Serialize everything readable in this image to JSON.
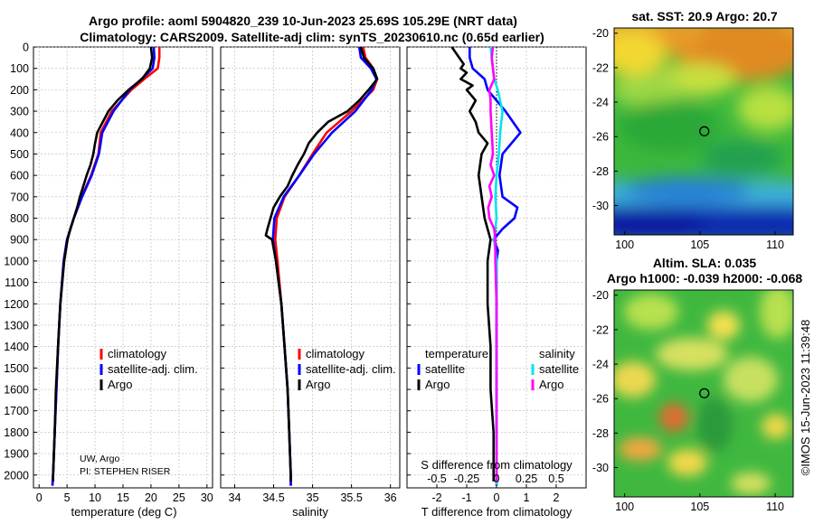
{
  "title": {
    "line1": "Argo profile: aoml 5904820_239 10-Jun-2023 25.69S 105.29E (NRT data)",
    "line2": "Climatology: CARS2009. Satellite-adj clim: synTS_20230610.nc (0.65d earlier)"
  },
  "credit": {
    "line1": "UW, Argo",
    "line2": "PI: STEPHEN RISER"
  },
  "watermark": "©IMOS 15-Jun-2023 11:39:48",
  "colors": {
    "climatology": "#ff0000",
    "satellite": "#0000ff",
    "argo": "#000000",
    "sat_salinity": "#00e5ee",
    "argo_salinity": "#ff00ff"
  },
  "chart_data": [
    {
      "type": "line",
      "name": "temperature-profile",
      "xlabel": "temperature (deg C)",
      "xlim": [
        -1,
        31
      ],
      "ylim": [
        2060,
        0
      ],
      "xticks": [
        "0",
        "5",
        "10",
        "15",
        "20",
        "25",
        "30"
      ],
      "yticks": [
        "0",
        "100",
        "200",
        "300",
        "400",
        "500",
        "600",
        "700",
        "800",
        "900",
        "1000",
        "1100",
        "1200",
        "1300",
        "1400",
        "1500",
        "1600",
        "1700",
        "1800",
        "1900",
        "2000"
      ],
      "legend": {
        "position": "lower-right",
        "entries": [
          "climatology",
          "satellite-adj. clim.",
          "Argo"
        ]
      },
      "series": [
        {
          "name": "climatology",
          "color": "#ff0000",
          "depth": [
            0,
            50,
            100,
            150,
            200,
            300,
            400,
            500,
            600,
            700,
            800,
            900,
            1000,
            1200,
            1400,
            1600,
            1800,
            2000,
            2050
          ],
          "values": [
            21.5,
            21.5,
            21.2,
            18.8,
            16.5,
            13.0,
            11.0,
            10.6,
            9.3,
            7.6,
            6.2,
            5.0,
            4.4,
            3.8,
            3.4,
            3.1,
            2.8,
            2.5,
            2.4
          ]
        },
        {
          "name": "satellite-adj. clim.",
          "color": "#0000ff",
          "depth": [
            0,
            50,
            100,
            150,
            200,
            300,
            400,
            500,
            600,
            700,
            800,
            900,
            1000,
            1200,
            1400,
            1600,
            1800,
            2000,
            2050
          ],
          "values": [
            20.5,
            20.6,
            20.3,
            18.3,
            16.2,
            13.3,
            11.3,
            10.7,
            9.4,
            7.7,
            6.2,
            5.0,
            4.4,
            3.8,
            3.4,
            3.1,
            2.8,
            2.5,
            2.4
          ]
        },
        {
          "name": "Argo",
          "color": "#000000",
          "depth": [
            0,
            50,
            100,
            150,
            200,
            250,
            300,
            350,
            400,
            450,
            500,
            550,
            600,
            650,
            700,
            750,
            800,
            850,
            900,
            1000,
            1200,
            1400,
            1600,
            1800,
            2000,
            2030
          ],
          "values": [
            20.0,
            20.2,
            19.8,
            18.4,
            16.0,
            14.0,
            12.4,
            11.4,
            10.4,
            10.0,
            9.7,
            9.2,
            8.5,
            7.9,
            7.3,
            6.8,
            6.2,
            5.6,
            5.1,
            4.5,
            3.8,
            3.4,
            3.0,
            2.8,
            2.5,
            2.5
          ]
        }
      ]
    },
    {
      "type": "line",
      "name": "salinity-profile",
      "xlabel": "salinity",
      "xlim": [
        33.82,
        36.12
      ],
      "ylim": [
        2060,
        0
      ],
      "xticks": [
        "34",
        "34.5",
        "35",
        "35.5",
        "36"
      ],
      "legend": {
        "position": "lower-right",
        "entries": [
          "climatology",
          "satellite-adj. clim.",
          "Argo"
        ]
      },
      "series": [
        {
          "name": "climatology",
          "color": "#ff0000",
          "depth": [
            0,
            50,
            100,
            150,
            200,
            300,
            400,
            500,
            600,
            700,
            800,
            900,
            1000,
            1200,
            1400,
            1600,
            1800,
            2000,
            2050
          ],
          "values": [
            35.65,
            35.68,
            35.78,
            35.83,
            35.78,
            35.5,
            35.18,
            35.0,
            34.83,
            34.64,
            34.54,
            34.52,
            34.55,
            34.6,
            34.64,
            34.68,
            34.7,
            34.72,
            34.72
          ]
        },
        {
          "name": "satellite-adj. clim.",
          "color": "#0000ff",
          "depth": [
            0,
            50,
            100,
            150,
            200,
            300,
            400,
            500,
            600,
            700,
            800,
            900,
            1000,
            1200,
            1400,
            1600,
            1800,
            2000,
            2050
          ],
          "values": [
            35.6,
            35.62,
            35.75,
            35.82,
            35.76,
            35.55,
            35.25,
            35.02,
            34.83,
            34.63,
            34.51,
            34.49,
            34.53,
            34.6,
            34.64,
            34.68,
            34.7,
            34.72,
            34.72
          ]
        },
        {
          "name": "Argo",
          "color": "#000000",
          "depth": [
            0,
            50,
            100,
            150,
            200,
            250,
            300,
            350,
            400,
            450,
            500,
            550,
            600,
            650,
            700,
            750,
            800,
            850,
            880,
            900,
            1000,
            1200,
            1400,
            1600,
            1800,
            2000,
            2030
          ],
          "values": [
            35.62,
            35.66,
            35.78,
            35.83,
            35.72,
            35.6,
            35.45,
            35.2,
            35.06,
            34.95,
            34.89,
            34.81,
            34.74,
            34.68,
            34.58,
            34.5,
            34.46,
            34.42,
            34.4,
            34.48,
            34.53,
            34.6,
            34.64,
            34.68,
            34.7,
            34.72,
            34.72
          ]
        }
      ]
    },
    {
      "type": "line",
      "name": "difference-profile",
      "xlabel": "T difference from climatology",
      "xlabel_top": "S difference from climatology",
      "xlim": [
        -3,
        3
      ],
      "xlim_top": [
        -0.75,
        0.75
      ],
      "ylim": [
        2060,
        0
      ],
      "xticks": [
        "-2",
        "-1",
        "0",
        "1",
        "2"
      ],
      "xticks_top": [
        "-0.5",
        "-0.25",
        "0",
        "0.25",
        "0.5"
      ],
      "legend": {
        "position": "lower",
        "temperature_header": "temperature",
        "salinity_header": "salinity",
        "temperature_entries": [
          "satellite",
          "Argo"
        ],
        "salinity_entries": [
          "satellite",
          "Argo"
        ]
      },
      "series": [
        {
          "name": "temperature satellite",
          "axis": "T",
          "color": "#0000ff",
          "depth": [
            0,
            50,
            100,
            150,
            200,
            300,
            400,
            500,
            600,
            700,
            750,
            800,
            850,
            900,
            950,
            1000,
            1200,
            1600,
            2000,
            2050
          ],
          "values": [
            -0.9,
            -0.9,
            -0.8,
            -0.4,
            -0.3,
            0.3,
            0.8,
            0.2,
            0.1,
            0.2,
            0.7,
            0.6,
            0.2,
            -0.1,
            0.05,
            0,
            0,
            0,
            0,
            0
          ]
        },
        {
          "name": "temperature Argo",
          "axis": "T",
          "color": "#000000",
          "depth": [
            0,
            40,
            80,
            100,
            120,
            150,
            180,
            200,
            250,
            300,
            350,
            400,
            450,
            500,
            600,
            700,
            800,
            900,
            1000,
            1200,
            1400,
            1600,
            1800,
            2000,
            2030
          ],
          "values": [
            -1.5,
            -1.3,
            -1.1,
            -1.2,
            -1.0,
            -1.2,
            -0.8,
            -1.0,
            -0.7,
            -0.9,
            -0.7,
            -0.6,
            -0.3,
            -0.5,
            -0.6,
            -0.5,
            -0.4,
            -0.2,
            -0.3,
            -0.3,
            -0.2,
            -0.2,
            -0.1,
            -0.1,
            -0.1
          ]
        },
        {
          "name": "salinity satellite",
          "axis": "S",
          "color": "#00e5ee",
          "depth": [
            0,
            50,
            100,
            150,
            200,
            300,
            400,
            500,
            600,
            700,
            800,
            900,
            1000,
            1200,
            1600,
            2000,
            2050
          ],
          "values": [
            -0.05,
            -0.04,
            -0.03,
            -0.02,
            0.01,
            0.05,
            0.03,
            0.02,
            0.0,
            -0.01,
            0.0,
            -0.02,
            0.0,
            0,
            0,
            0,
            0
          ]
        },
        {
          "name": "salinity Argo",
          "axis": "S",
          "color": "#ff00ff",
          "depth": [
            0,
            50,
            100,
            150,
            200,
            250,
            300,
            400,
            500,
            550,
            600,
            650,
            700,
            750,
            800,
            850,
            900,
            950,
            1000,
            1200,
            1600,
            2000,
            2030
          ],
          "values": [
            -0.03,
            -0.04,
            -0.03,
            -0.02,
            -0.06,
            -0.05,
            -0.05,
            -0.04,
            -0.03,
            -0.05,
            -0.02,
            -0.06,
            -0.04,
            -0.07,
            -0.06,
            -0.02,
            -0.01,
            -0.01,
            -0.01,
            0,
            0,
            0,
            0
          ]
        }
      ]
    },
    {
      "type": "heatmap",
      "name": "sst-map",
      "title": "sat. SST: 20.9 Argo: 20.7",
      "xlim": [
        99.3,
        111.2
      ],
      "ylim": [
        -31.7,
        -19.7
      ],
      "xticks": [
        "100",
        "105",
        "110"
      ],
      "yticks": [
        "-20",
        "-22",
        "-24",
        "-26",
        "-28",
        "-30"
      ],
      "marker": {
        "lon": 105.29,
        "lat": -25.69
      }
    },
    {
      "type": "heatmap",
      "name": "sla-map",
      "title": "Altim. SLA: 0.035",
      "subtitle": "Argo h1000: -0.039 h2000: -0.068",
      "xlim": [
        99.3,
        111.2
      ],
      "ylim": [
        -31.7,
        -19.7
      ],
      "xticks": [
        "100",
        "105",
        "110"
      ],
      "yticks": [
        "-20",
        "-22",
        "-24",
        "-26",
        "-28",
        "-30"
      ],
      "marker": {
        "lon": 105.29,
        "lat": -25.69
      }
    }
  ]
}
